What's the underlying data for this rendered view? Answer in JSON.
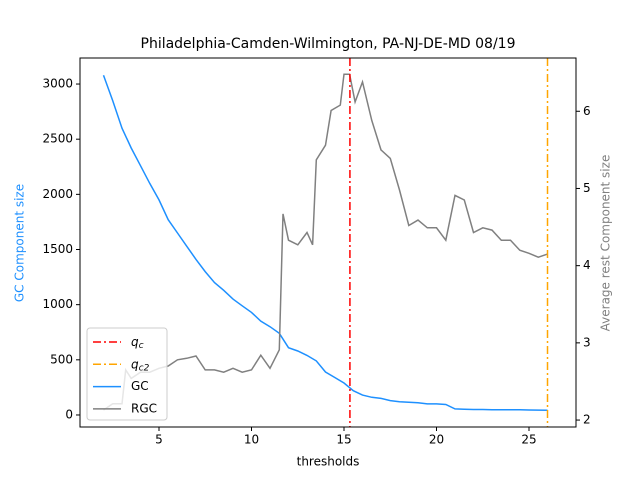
{
  "chart_data": {
    "type": "line",
    "title": "Philadelphia-Camden-Wilmington, PA-NJ-DE-MD 08/19",
    "x_label": "thresholds",
    "y_label": "GC Component size",
    "y2_label": "Average rest Component size",
    "xlim": [
      0.73,
      27.54
    ],
    "ylim": [
      -109,
      3236
    ],
    "y2lim": [
      1.91,
      6.69
    ],
    "xticks": [
      5,
      10,
      15,
      20,
      25
    ],
    "yticks": [
      0,
      500,
      1000,
      1500,
      2000,
      2500,
      3000
    ],
    "y2ticks": [
      2,
      3,
      4,
      5,
      6
    ],
    "vlines": [
      {
        "name": "qc",
        "color": "#ff0000",
        "x": 15.32
      },
      {
        "name": "qc2",
        "color": "#ffa500",
        "x": 26.0
      }
    ],
    "series": [
      {
        "name": "GC",
        "color": "#1e90ff",
        "axis": "y",
        "x": [
          2,
          2.5,
          3,
          3.5,
          4,
          4.5,
          5,
          5.5,
          6,
          6.5,
          7,
          7.5,
          8,
          8.5,
          9,
          9.5,
          10,
          10.5,
          11,
          11.5,
          12,
          12.5,
          13,
          13.5,
          14,
          14.5,
          15,
          15.5,
          16,
          16.5,
          17,
          17.5,
          18,
          18.5,
          19,
          19.5,
          20,
          20.5,
          21,
          21.5,
          22,
          22.5,
          23,
          23.5,
          24,
          24.5,
          25,
          25.5,
          26
        ],
        "values": [
          3080,
          2850,
          2600,
          2420,
          2260,
          2100,
          1950,
          1770,
          1650,
          1530,
          1410,
          1300,
          1200,
          1130,
          1050,
          990,
          930,
          850,
          800,
          740,
          610,
          580,
          540,
          490,
          390,
          340,
          290,
          220,
          180,
          160,
          150,
          130,
          120,
          115,
          110,
          100,
          100,
          95,
          55,
          52,
          50,
          50,
          48,
          48,
          47,
          47,
          45,
          44,
          42
        ]
      },
      {
        "name": "RGC",
        "color": "#808080",
        "axis": "y2",
        "x": [
          2,
          2.5,
          3,
          3.2,
          3.5,
          4,
          4.5,
          5,
          5.5,
          6,
          6.5,
          7,
          7.5,
          8,
          8.5,
          9,
          9.5,
          10,
          10.5,
          11,
          11.5,
          11.7,
          12,
          12.5,
          13,
          13.3,
          13.5,
          14,
          14.3,
          14.8,
          15,
          15.3,
          15.6,
          16,
          16.5,
          17,
          17.5,
          18,
          18.5,
          19,
          19.5,
          20,
          20.5,
          21,
          21.5,
          22,
          22.5,
          23,
          23.5,
          24,
          24.5,
          25,
          25.5,
          26
        ],
        "values": [
          2.13,
          2.21,
          2.21,
          2.65,
          2.54,
          2.62,
          2.62,
          2.67,
          2.7,
          2.78,
          2.8,
          2.83,
          2.65,
          2.65,
          2.62,
          2.67,
          2.62,
          2.65,
          2.84,
          2.67,
          2.91,
          4.67,
          4.33,
          4.27,
          4.43,
          4.27,
          5.37,
          5.56,
          6.01,
          6.08,
          6.48,
          6.48,
          6.12,
          6.38,
          5.88,
          5.5,
          5.39,
          4.98,
          4.52,
          4.59,
          4.49,
          4.49,
          4.33,
          4.91,
          4.85,
          4.43,
          4.49,
          4.46,
          4.33,
          4.33,
          4.2,
          4.16,
          4.11,
          4.15
        ]
      }
    ]
  }
}
